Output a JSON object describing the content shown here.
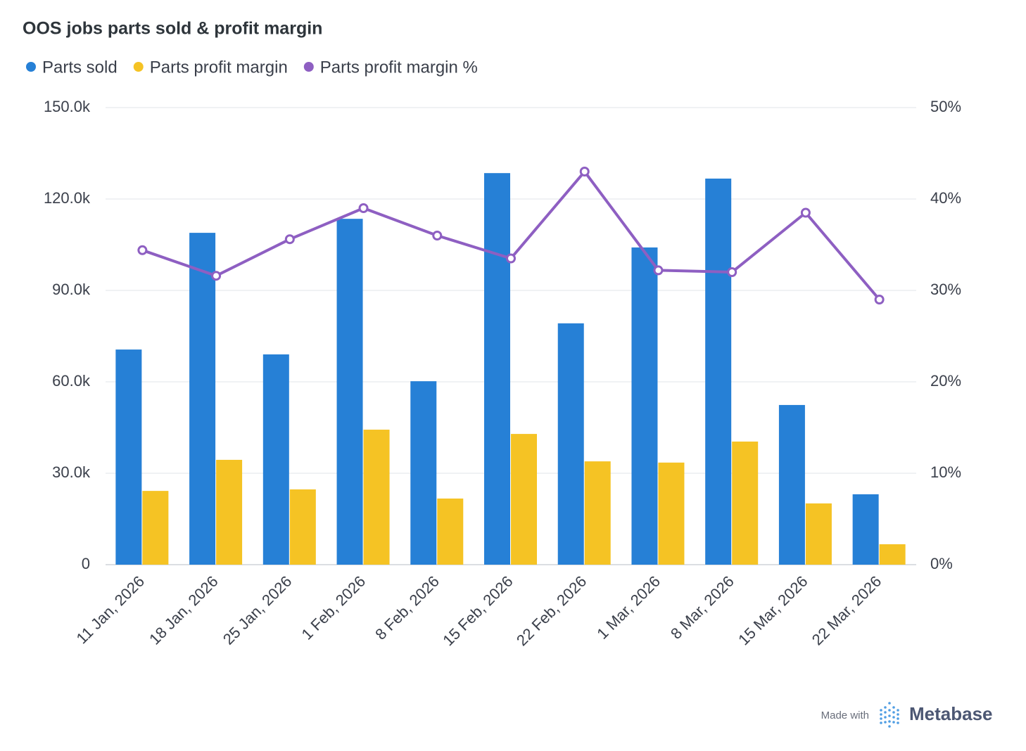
{
  "chart_data": {
    "type": "bar",
    "title": "OOS jobs parts sold & profit margin",
    "categories": [
      "11 Jan, 2026",
      "18 Jan, 2026",
      "25 Jan, 2026",
      "1 Feb, 2026",
      "8 Feb, 2026",
      "15 Feb, 2026",
      "22 Feb, 2026",
      "1 Mar, 2026",
      "8 Mar, 2026",
      "15 Mar, 2026",
      "22 Mar, 2026"
    ],
    "series": [
      {
        "name": "Parts sold",
        "type": "bar",
        "color": "#2680d6",
        "values": [
          70600,
          108900,
          69000,
          113500,
          60200,
          128500,
          79200,
          104100,
          126700,
          52400,
          23100
        ]
      },
      {
        "name": "Parts profit margin",
        "type": "bar",
        "color": "#f5c324",
        "values": [
          24200,
          34400,
          24700,
          44300,
          21700,
          42900,
          33900,
          33500,
          40400,
          20100,
          6700
        ]
      },
      {
        "name": "Parts profit margin %",
        "type": "line",
        "axis": "y2",
        "color": "#8e5fc2",
        "values": [
          34.4,
          31.6,
          35.6,
          39.0,
          36.0,
          33.5,
          43.0,
          32.2,
          32.0,
          38.5,
          29.0
        ]
      }
    ],
    "ylim": [
      0,
      150000
    ],
    "yticks": [
      0,
      {
        "value": 30000,
        "label": "30.0k"
      },
      {
        "value": 60000,
        "label": "60.0k"
      },
      {
        "value": 90000,
        "label": "90.0k"
      },
      {
        "value": 120000,
        "label": "120.0k"
      },
      {
        "value": 150000,
        "label": "150.0k"
      }
    ],
    "y2lim": [
      0,
      50
    ],
    "y2ticks": [
      {
        "value": 0,
        "label": "0%"
      },
      {
        "value": 10,
        "label": "10%"
      },
      {
        "value": 20,
        "label": "20%"
      },
      {
        "value": 30,
        "label": "30%"
      },
      {
        "value": 40,
        "label": "40%"
      },
      {
        "value": 50,
        "label": "50%"
      }
    ],
    "grid": true,
    "legend": "top-left"
  },
  "footer": {
    "made_with": "Made with",
    "brand": "Metabase"
  }
}
